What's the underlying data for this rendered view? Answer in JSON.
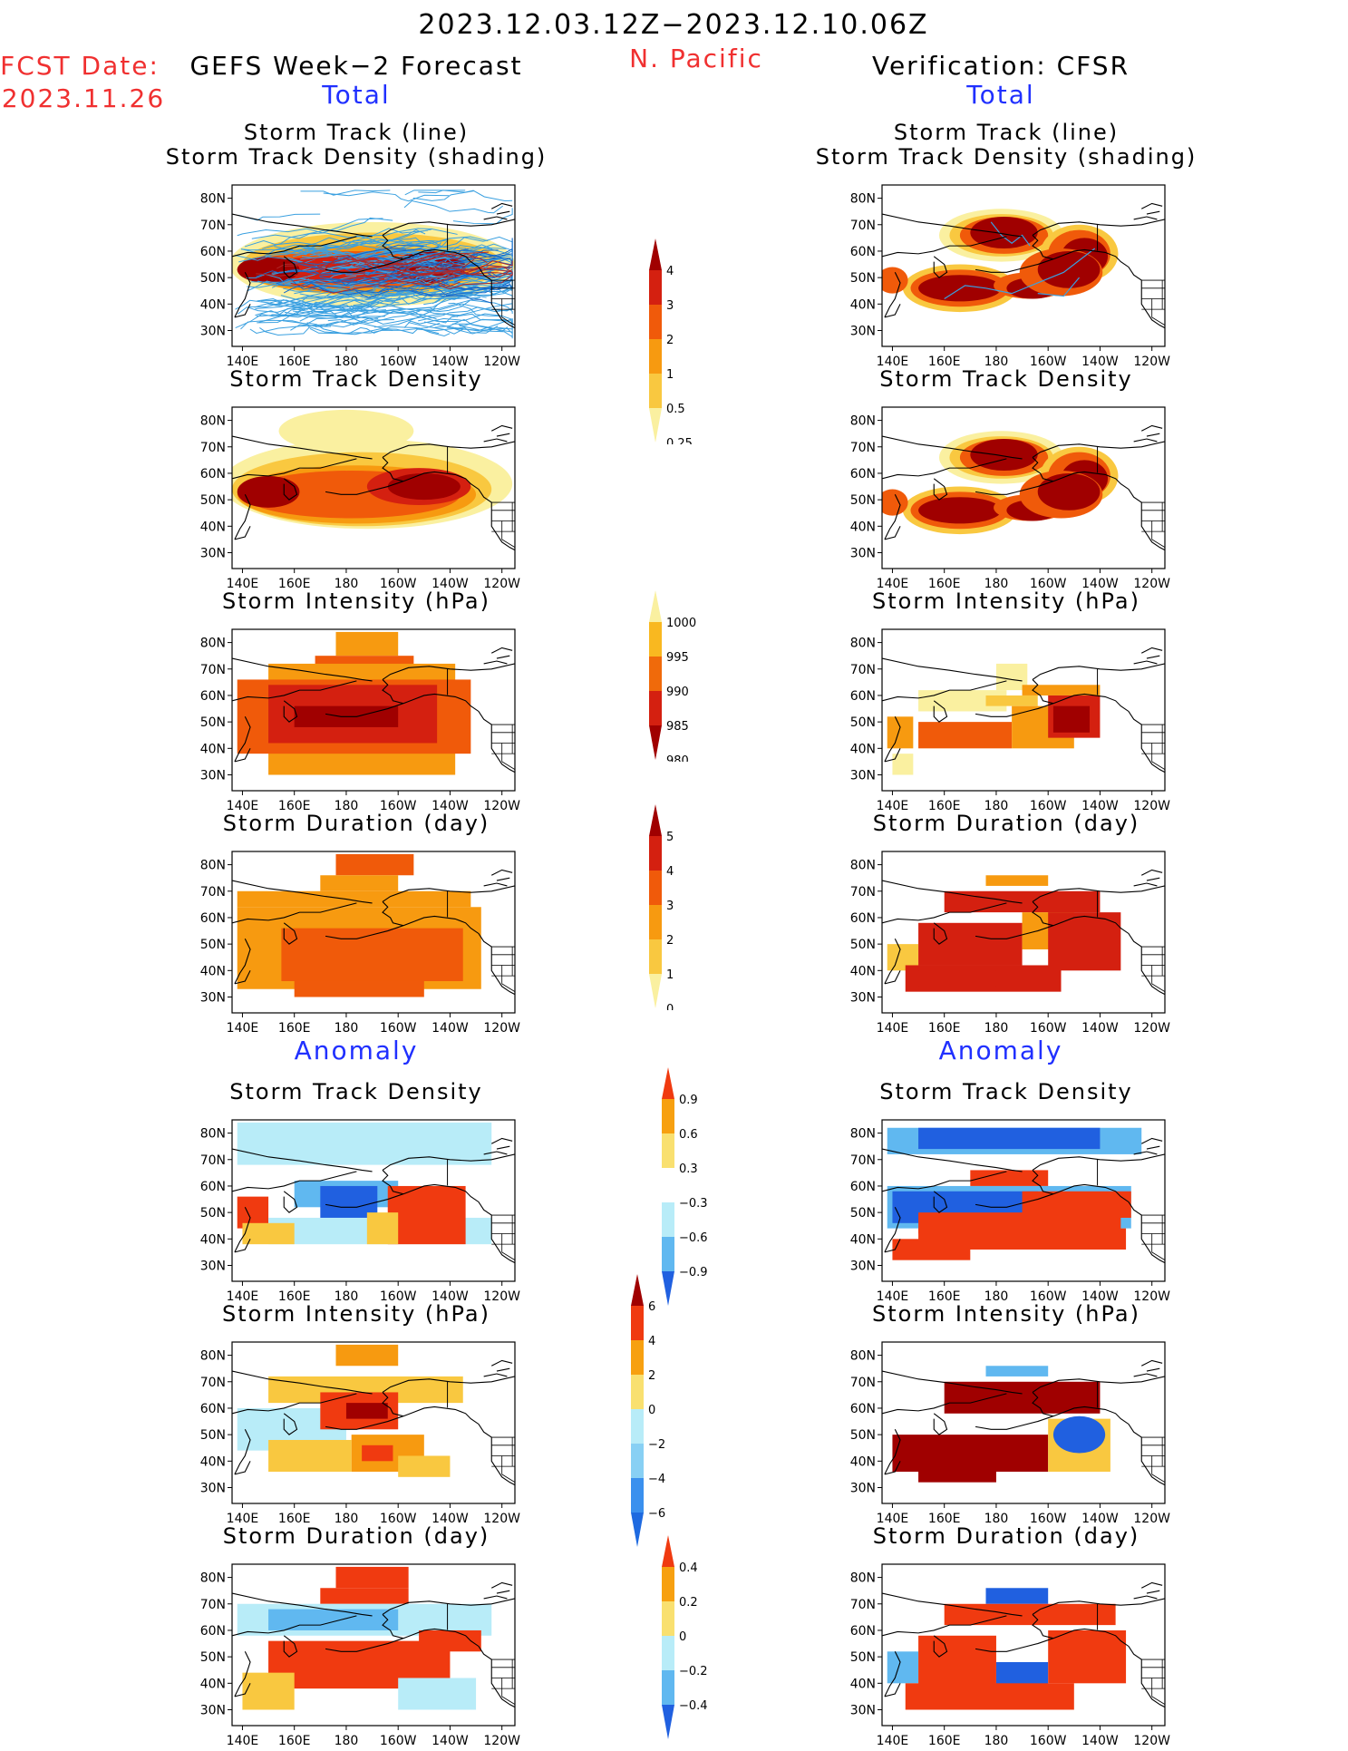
{
  "header": {
    "date_range": "2023.12.03.12Z−2023.12.10.06Z",
    "fcst_label": "FCST Date:",
    "fcst_date": "2023.11.26",
    "left_title": "GEFS Week−2 Forecast",
    "region": "N. Pacific",
    "right_title": "Verification: CFSR"
  },
  "sections": {
    "total": "Total",
    "anomaly": "Anomaly"
  },
  "panel_titles": {
    "track_line": "Storm Track (line)",
    "track_shading": "Storm Track Density (shading)",
    "density": "Storm Track Density",
    "intensity": "Storm Intensity (hPa)",
    "duration": "Storm Duration (day)"
  },
  "axes": {
    "lat_labels": [
      "80N",
      "70N",
      "60N",
      "50N",
      "40N",
      "30N"
    ],
    "lon_labels": [
      "140E",
      "160E",
      "180",
      "160W",
      "140W",
      "120W"
    ]
  },
  "colorbars": {
    "total_density": {
      "labels": [
        "4",
        "3",
        "2",
        "1",
        "0.5",
        "0.25"
      ],
      "colors": [
        "#a00000",
        "#d42010",
        "#f05a0a",
        "#f79a10",
        "#f9c840",
        "#faf0a0"
      ]
    },
    "total_intensity": {
      "labels": [
        "1000",
        "995",
        "990",
        "985",
        "980"
      ],
      "colors": [
        "#faf0a0",
        "#f9b820",
        "#f06a0a",
        "#d42010",
        "#a00000"
      ]
    },
    "total_duration": {
      "labels": [
        "5",
        "4",
        "3",
        "2",
        "1",
        "0"
      ],
      "colors": [
        "#a00000",
        "#d42010",
        "#f05a0a",
        "#f79a10",
        "#f9c840",
        "#faf0a0"
      ]
    },
    "anom_density": {
      "labels": [
        "0.9",
        "0.6",
        "0.3",
        "−0.3",
        "−0.6",
        "−0.9"
      ],
      "colors": [
        "#f03a10",
        "#f7a010",
        "#f9e070",
        "#ffffff",
        "#b8ecf8",
        "#60b8f0",
        "#2060e0"
      ]
    },
    "anom_intensity": {
      "labels": [
        "6",
        "4",
        "2",
        "0",
        "−2",
        "−4",
        "−6"
      ],
      "colors": [
        "#a00000",
        "#f03a10",
        "#f7a010",
        "#f9e070",
        "#b8ecf8",
        "#88d0f4",
        "#3a90ee",
        "#1e6ae0"
      ]
    },
    "anom_duration": {
      "labels": [
        "0.4",
        "0.2",
        "0",
        "−0.2",
        "−0.4"
      ],
      "colors": [
        "#f03a10",
        "#f7a010",
        "#f9e070",
        "#b8ecf8",
        "#60b8f0",
        "#2060e0"
      ]
    }
  },
  "colors": {
    "title_red": "#f03030",
    "section_blue": "#2030ff",
    "track_line": "#3aa0e0"
  }
}
